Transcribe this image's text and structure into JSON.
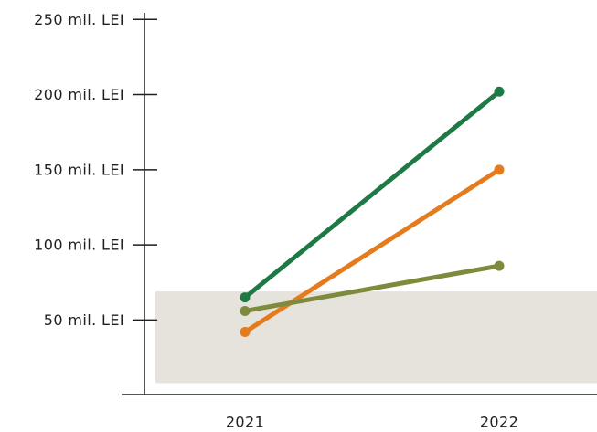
{
  "chart_data": {
    "type": "line",
    "title": "",
    "xlabel": "",
    "ylabel": "",
    "categories": [
      "2021",
      "2022"
    ],
    "ylim": [
      0,
      250
    ],
    "y_ticks": [
      {
        "value": 50,
        "label": "50 mil. LEI"
      },
      {
        "value": 100,
        "label": "100 mil. LEI"
      },
      {
        "value": 150,
        "label": "150 mil. LEI"
      },
      {
        "value": 200,
        "label": "200 mil. LEI"
      },
      {
        "value": 250,
        "label": "250 mil. LEI"
      }
    ],
    "shaded_band": {
      "from": 8,
      "to": 69,
      "color": "#e6e3dd"
    },
    "grid": false,
    "legend": "none",
    "series": [
      {
        "values": [
          65,
          202
        ],
        "color": "#1e7a45"
      },
      {
        "values": [
          42,
          150
        ],
        "color": "#e47c1e"
      },
      {
        "values": [
          56,
          86
        ],
        "color": "#7e8b3c"
      }
    ]
  }
}
